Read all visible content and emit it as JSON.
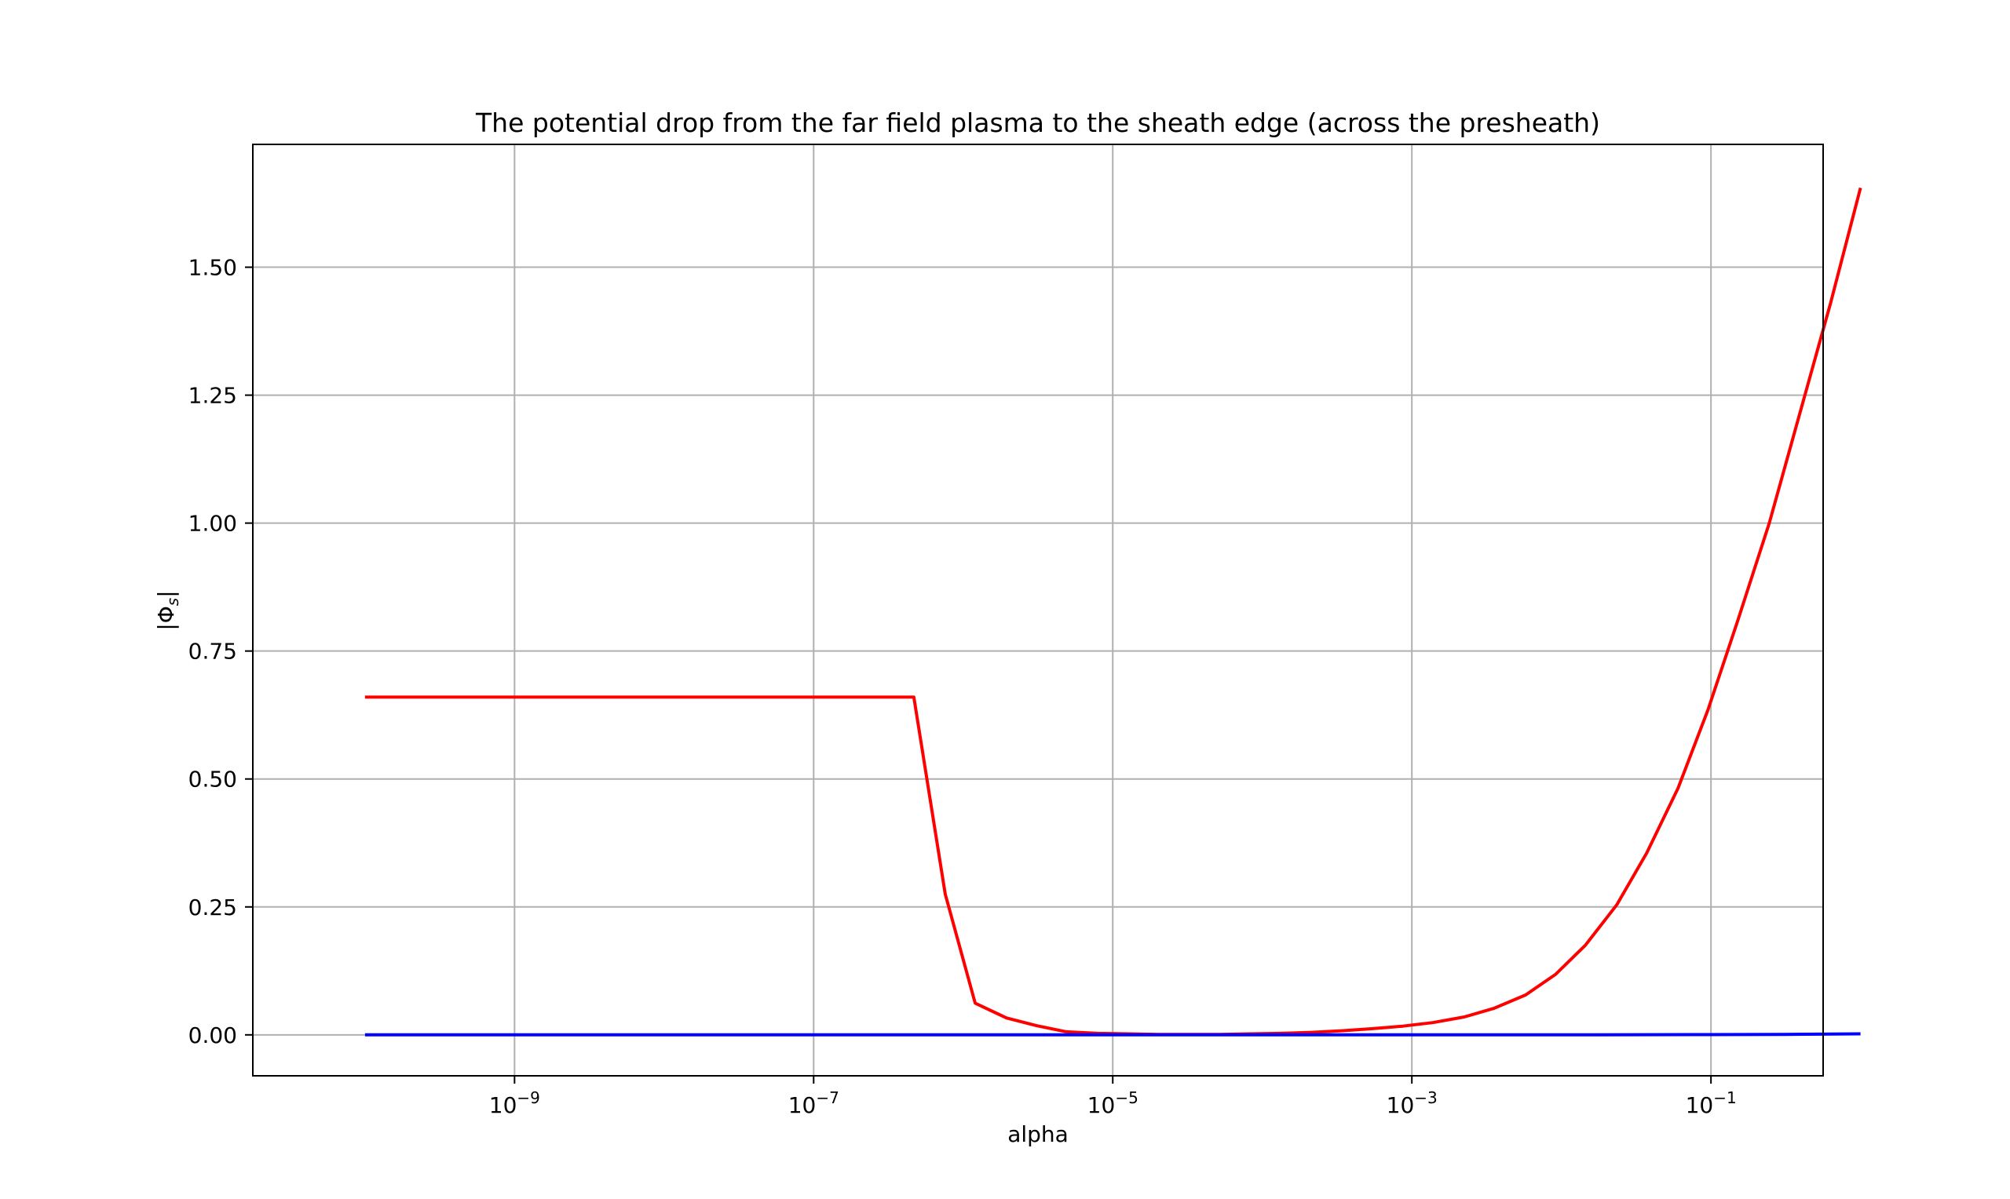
{
  "chart_data": {
    "type": "line",
    "title": "The potential drop from the far field plasma to the sheath edge (across the presheath)",
    "xlabel": "alpha",
    "ylabel_main": "|Φ",
    "ylabel_sub": "s",
    "ylabel_close": "|",
    "xscale": "log",
    "xlim_log10": [
      -10.75,
      -0.25
    ],
    "ylim": [
      -0.08,
      1.74
    ],
    "grid": true,
    "x_ticks": [
      {
        "exp": -9,
        "base": "10",
        "sup": "−9"
      },
      {
        "exp": -7,
        "base": "10",
        "sup": "−7"
      },
      {
        "exp": -5,
        "base": "10",
        "sup": "−5"
      },
      {
        "exp": -3,
        "base": "10",
        "sup": "−3"
      },
      {
        "exp": -1,
        "base": "10",
        "sup": "−1"
      }
    ],
    "y_ticks": [
      {
        "value": 0.0,
        "label": "0.00"
      },
      {
        "value": 0.25,
        "label": "0.25"
      },
      {
        "value": 0.5,
        "label": "0.50"
      },
      {
        "value": 0.75,
        "label": "0.75"
      },
      {
        "value": 1.0,
        "label": "1.00"
      },
      {
        "value": 1.25,
        "label": "1.25"
      },
      {
        "value": 1.5,
        "label": "1.50"
      }
    ],
    "series": [
      {
        "color": "#ff0000",
        "x_log10": [
          -10.0,
          -6.33,
          -6.12,
          -5.92,
          -5.71,
          -5.51,
          -5.31,
          -5.1,
          -4.9,
          -4.69,
          -4.49,
          -4.29,
          -4.08,
          -3.88,
          -3.67,
          -3.47,
          -3.27,
          -3.06,
          -2.86,
          -2.65,
          -2.45,
          -2.24,
          -2.04,
          -1.84,
          -1.63,
          -1.43,
          -1.22,
          -1.02,
          -0.82,
          -0.61,
          -0.41,
          -0.2,
          0.0
        ],
        "y": [
          0.66,
          0.66,
          0.275,
          0.062,
          0.033,
          0.018,
          0.006,
          0.003,
          0.002,
          0.001,
          0.001,
          0.001,
          0.002,
          0.003,
          0.005,
          0.008,
          0.012,
          0.017,
          0.024,
          0.035,
          0.052,
          0.078,
          0.118,
          0.175,
          0.254,
          0.355,
          0.482,
          0.635,
          0.81,
          1.0,
          1.21,
          1.43,
          1.655
        ]
      },
      {
        "color": "#0000ff",
        "x_log10": [
          -10.0,
          -8.0,
          -6.0,
          -4.0,
          -2.0,
          -1.0,
          -0.5,
          0.0
        ],
        "y": [
          0.0,
          0.0,
          0.0,
          0.0,
          0.0,
          0.0005,
          0.001,
          0.002
        ]
      }
    ]
  }
}
